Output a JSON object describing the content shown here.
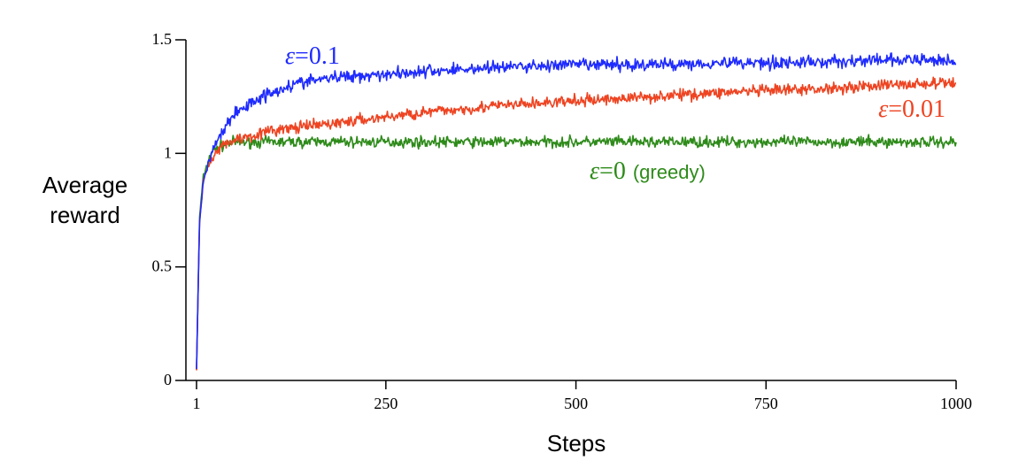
{
  "chart_data": {
    "type": "line",
    "xlabel": "Steps",
    "ylabel_lines": [
      "Average",
      "reward"
    ],
    "xlim": [
      1,
      1000
    ],
    "ylim": [
      0,
      1.5
    ],
    "x_ticks": [
      1,
      250,
      500,
      750,
      1000
    ],
    "y_ticks": [
      0,
      0.5,
      1,
      1.5
    ],
    "x_tick_labels": [
      "1",
      "250",
      "500",
      "750",
      "1000"
    ],
    "y_tick_labels": [
      "0",
      "0.5",
      "1",
      "1.5"
    ],
    "grid": false,
    "legend": "inline labels next to lines",
    "series": [
      {
        "id": "eps01",
        "label_symbol": "ε",
        "label_value": "=0.1",
        "label_extra": "",
        "color": "#1f2bff",
        "x": [
          1,
          5,
          10,
          20,
          30,
          40,
          50,
          75,
          100,
          125,
          150,
          200,
          250,
          300,
          400,
          500,
          600,
          700,
          800,
          900,
          1000
        ],
        "y": [
          0.05,
          0.7,
          0.88,
          1.0,
          1.07,
          1.12,
          1.17,
          1.23,
          1.27,
          1.3,
          1.32,
          1.34,
          1.35,
          1.36,
          1.38,
          1.39,
          1.39,
          1.4,
          1.4,
          1.41,
          1.41
        ],
        "noise": 0.02
      },
      {
        "id": "eps001",
        "label_symbol": "ε",
        "label_value": "=0.01",
        "label_extra": "",
        "color": "#ee4422",
        "x": [
          1,
          5,
          10,
          20,
          30,
          40,
          50,
          75,
          100,
          150,
          200,
          250,
          300,
          400,
          500,
          600,
          700,
          800,
          900,
          1000
        ],
        "y": [
          0.05,
          0.7,
          0.88,
          0.98,
          1.02,
          1.04,
          1.06,
          1.08,
          1.1,
          1.12,
          1.14,
          1.16,
          1.18,
          1.21,
          1.23,
          1.25,
          1.27,
          1.28,
          1.3,
          1.31
        ],
        "noise": 0.018
      },
      {
        "id": "eps0",
        "label_symbol": "ε",
        "label_value": "=0",
        "label_extra": "(greedy)",
        "color": "#2e8b1a",
        "x": [
          1,
          5,
          10,
          20,
          30,
          40,
          50,
          75,
          100,
          200,
          300,
          400,
          500,
          600,
          700,
          800,
          900,
          1000
        ],
        "y": [
          0.05,
          0.72,
          0.9,
          1.0,
          1.03,
          1.04,
          1.05,
          1.05,
          1.05,
          1.05,
          1.05,
          1.05,
          1.05,
          1.05,
          1.05,
          1.05,
          1.05,
          1.05
        ],
        "noise": 0.017
      }
    ]
  }
}
